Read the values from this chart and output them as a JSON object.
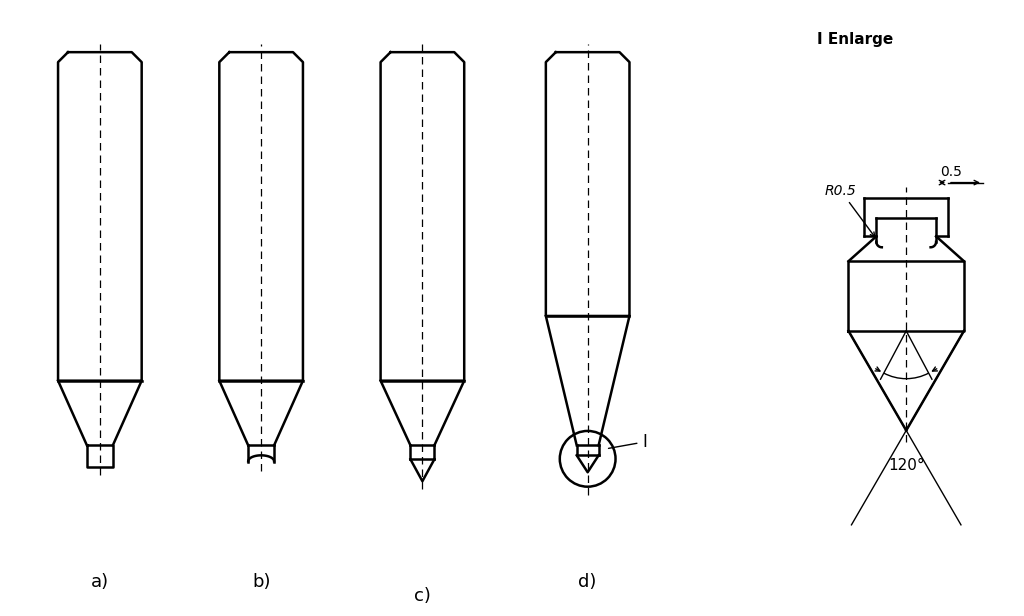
{
  "background_color": "#ffffff",
  "line_color": "#000000",
  "labels": [
    "a)",
    "b)",
    "c)",
    "d)"
  ],
  "title_enlarge": "I Enlarge",
  "dim_05": "0.5",
  "dim_r05": "R0.5",
  "dim_120": "120°",
  "label_I": "I"
}
